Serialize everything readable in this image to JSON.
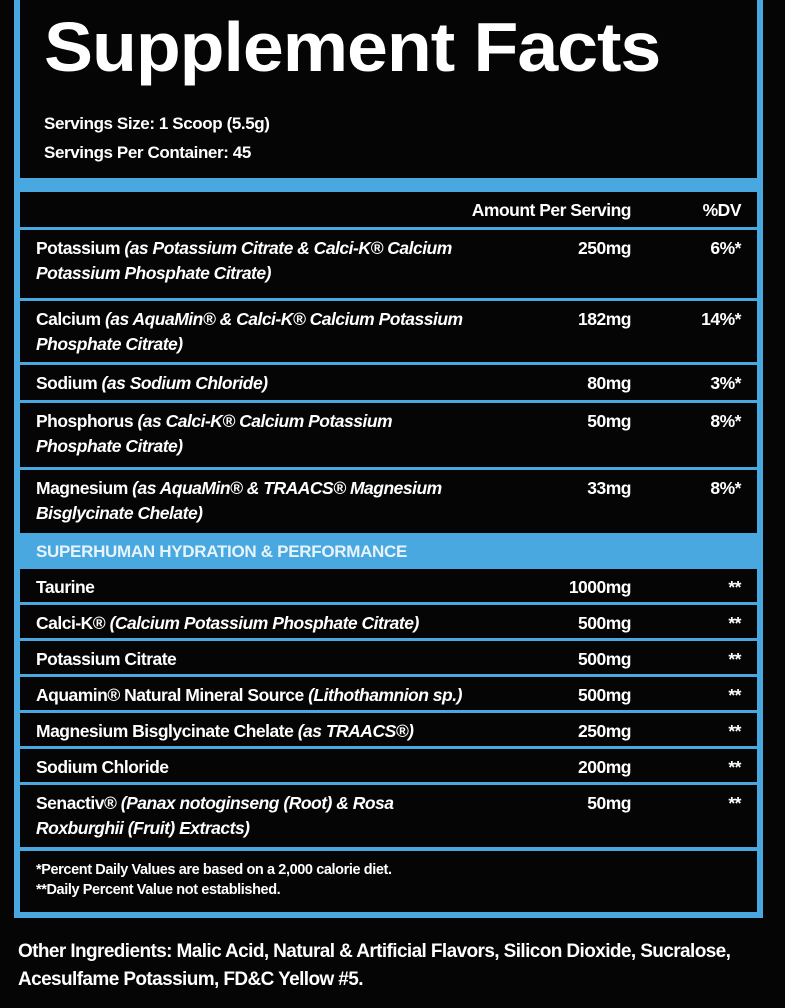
{
  "title": "Supplement Facts",
  "serving_size": "Servings Size: 1 Scoop (5.5g)",
  "servings_per_container": "Servings Per Container: 45",
  "header": {
    "amount": "Amount Per Serving",
    "dv": "%DV"
  },
  "rows": [
    {
      "name": "Potassium",
      "detail": "(as Potassium Citrate & Calci-K® Calcium Potassium Phosphate Citrate)",
      "amount": "250mg",
      "dv": "6%*"
    },
    {
      "name": "Calcium",
      "detail": "(as AquaMin® & Calci-K® Calcium Potassium Phosphate Citrate)",
      "amount": "182mg",
      "dv": "14%*"
    },
    {
      "name": "Sodium",
      "detail": "(as Sodium Chloride)",
      "amount": "80mg",
      "dv": "3%*"
    },
    {
      "name": "Phosphorus",
      "detail": "(as Calci-K® Calcium Potassium Phosphate Citrate)",
      "amount": "50mg",
      "dv": "8%*"
    },
    {
      "name": "Magnesium",
      "detail": "(as AquaMin® & TRAACS® Magnesium Bisglycinate Chelate)",
      "amount": "33mg",
      "dv": "8%*"
    }
  ],
  "section_title": "SUPERHUMAN HYDRATION & PERFORMANCE",
  "blend": [
    {
      "name": "Taurine",
      "detail": "",
      "amount": "1000mg",
      "dv": "**"
    },
    {
      "name": "Calci-K®",
      "detail": "(Calcium Potassium Phosphate Citrate)",
      "amount": "500mg",
      "dv": "**"
    },
    {
      "name": "Potassium Citrate",
      "detail": "",
      "amount": "500mg",
      "dv": "**"
    },
    {
      "name": "Aquamin® Natural Mineral Source",
      "detail": "(Lithothamnion sp.)",
      "amount": "500mg",
      "dv": "**"
    },
    {
      "name": "Magnesium Bisglycinate Chelate",
      "detail": "(as TRAACS®)",
      "amount": "250mg",
      "dv": "**"
    },
    {
      "name": "Sodium Chloride",
      "detail": "",
      "amount": "200mg",
      "dv": "**"
    },
    {
      "name": "Senactiv®",
      "detail": "(Panax notoginseng (Root) & Rosa Roxburghii (Fruit) Extracts)",
      "amount": "50mg",
      "dv": "**"
    }
  ],
  "footnotes": [
    "*Percent Daily Values are based on a 2,000 calorie diet.",
    "**Daily Percent Value not established."
  ],
  "other_ingredients": "Other Ingredients: Malic Acid, Natural & Artificial Flavors, Silicon Dioxide, Sucralose, Acesulfame Potassium, FD&C Yellow #5.",
  "colors": {
    "accent": "#4aa8e0",
    "background": "#050505",
    "text": "#ffffff"
  }
}
